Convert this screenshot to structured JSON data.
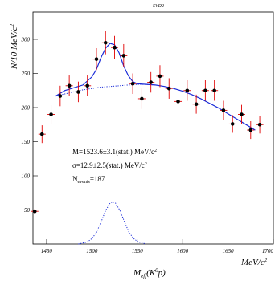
{
  "chart_data": {
    "type": "scatter",
    "title": "SVD2",
    "xlabel": {
      "main": "M",
      "sub": "eff",
      "open": "(K",
      "sup": "0",
      "close": "p)"
    },
    "ylabel": {
      "main": "N/10 MeV/c",
      "sup": "2"
    },
    "x_unit": {
      "main": "MeV/c",
      "sup": "2"
    },
    "xlim": [
      1435,
      1700
    ],
    "ylim": [
      0,
      340
    ],
    "x_ticks": [
      1450,
      1500,
      1550,
      1600,
      1650,
      1700
    ],
    "x_tick_labels": [
      "1450",
      "1500",
      "1550",
      "1600",
      "1650",
      "1700"
    ],
    "y_ticks": [
      50,
      100,
      150,
      200,
      250,
      300
    ],
    "y_tick_labels": [
      "50",
      "100",
      "150",
      "200",
      "250",
      "300"
    ],
    "series": [
      {
        "role": "data-points",
        "marker_color": "#000000",
        "error_color": "#e00000",
        "points": [
          {
            "x": 1437,
            "y": 48,
            "err": 3
          },
          {
            "x": 1445,
            "y": 161,
            "err": 13
          },
          {
            "x": 1455,
            "y": 190,
            "err": 14
          },
          {
            "x": 1465,
            "y": 217,
            "err": 15
          },
          {
            "x": 1475,
            "y": 232,
            "err": 15
          },
          {
            "x": 1485,
            "y": 223,
            "err": 15
          },
          {
            "x": 1495,
            "y": 232,
            "err": 15
          },
          {
            "x": 1505,
            "y": 271,
            "err": 16
          },
          {
            "x": 1515,
            "y": 295,
            "err": 17
          },
          {
            "x": 1525,
            "y": 288,
            "err": 17
          },
          {
            "x": 1535,
            "y": 276,
            "err": 17
          },
          {
            "x": 1545,
            "y": 235,
            "err": 15
          },
          {
            "x": 1555,
            "y": 213,
            "err": 15
          },
          {
            "x": 1565,
            "y": 237,
            "err": 15
          },
          {
            "x": 1575,
            "y": 246,
            "err": 16
          },
          {
            "x": 1585,
            "y": 228,
            "err": 15
          },
          {
            "x": 1595,
            "y": 209,
            "err": 14
          },
          {
            "x": 1605,
            "y": 225,
            "err": 15
          },
          {
            "x": 1615,
            "y": 205,
            "err": 14
          },
          {
            "x": 1625,
            "y": 225,
            "err": 15
          },
          {
            "x": 1635,
            "y": 225,
            "err": 15
          },
          {
            "x": 1645,
            "y": 196,
            "err": 14
          },
          {
            "x": 1655,
            "y": 176,
            "err": 13
          },
          {
            "x": 1665,
            "y": 190,
            "err": 14
          },
          {
            "x": 1675,
            "y": 167,
            "err": 13
          },
          {
            "x": 1685,
            "y": 175,
            "err": 13
          }
        ]
      },
      {
        "role": "total-fit",
        "color": "#1a2bd8",
        "line_style": "solid",
        "points": [
          [
            1460,
            217
          ],
          [
            1470,
            225
          ],
          [
            1480,
            229
          ],
          [
            1490,
            233
          ],
          [
            1500,
            245
          ],
          [
            1505,
            256
          ],
          [
            1510,
            273
          ],
          [
            1515,
            287
          ],
          [
            1520,
            294
          ],
          [
            1525,
            292
          ],
          [
            1530,
            280
          ],
          [
            1535,
            261
          ],
          [
            1540,
            247
          ],
          [
            1545,
            238
          ],
          [
            1550,
            235
          ],
          [
            1560,
            234
          ],
          [
            1570,
            233
          ],
          [
            1580,
            231
          ],
          [
            1590,
            228
          ],
          [
            1600,
            224
          ],
          [
            1610,
            219
          ],
          [
            1620,
            213
          ],
          [
            1630,
            206
          ],
          [
            1640,
            199
          ],
          [
            1650,
            191
          ],
          [
            1660,
            183
          ],
          [
            1670,
            175
          ],
          [
            1680,
            167
          ]
        ]
      },
      {
        "role": "background-fit",
        "color": "#1a2bd8",
        "line_style": "dotted",
        "points": [
          [
            1460,
            217
          ],
          [
            1470,
            220
          ],
          [
            1480,
            223
          ],
          [
            1490,
            226
          ],
          [
            1500,
            228
          ],
          [
            1510,
            230
          ],
          [
            1520,
            231
          ],
          [
            1530,
            232
          ],
          [
            1540,
            233
          ],
          [
            1550,
            234
          ],
          [
            1560,
            234
          ],
          [
            1570,
            233
          ]
        ]
      },
      {
        "role": "signal-fit",
        "color": "#1a2bd8",
        "line_style": "dotted",
        "points": [
          [
            1485,
            0
          ],
          [
            1495,
            3
          ],
          [
            1500,
            8
          ],
          [
            1505,
            17
          ],
          [
            1510,
            32
          ],
          [
            1515,
            49
          ],
          [
            1520,
            60
          ],
          [
            1523,
            62
          ],
          [
            1526,
            60
          ],
          [
            1531,
            49
          ],
          [
            1536,
            32
          ],
          [
            1541,
            17
          ],
          [
            1546,
            8
          ],
          [
            1551,
            3
          ],
          [
            1560,
            0
          ]
        ]
      }
    ],
    "annotations": [
      {
        "text_pre": "M=1523.6±3.1(stat.) MeV/c",
        "sup": "2"
      },
      {
        "text_pre": "σ=12.9±2.5(stat.) MeV/c",
        "sup": "2"
      },
      {
        "text_pre": "N",
        "sub": "events",
        "text_post": "=187"
      }
    ]
  }
}
